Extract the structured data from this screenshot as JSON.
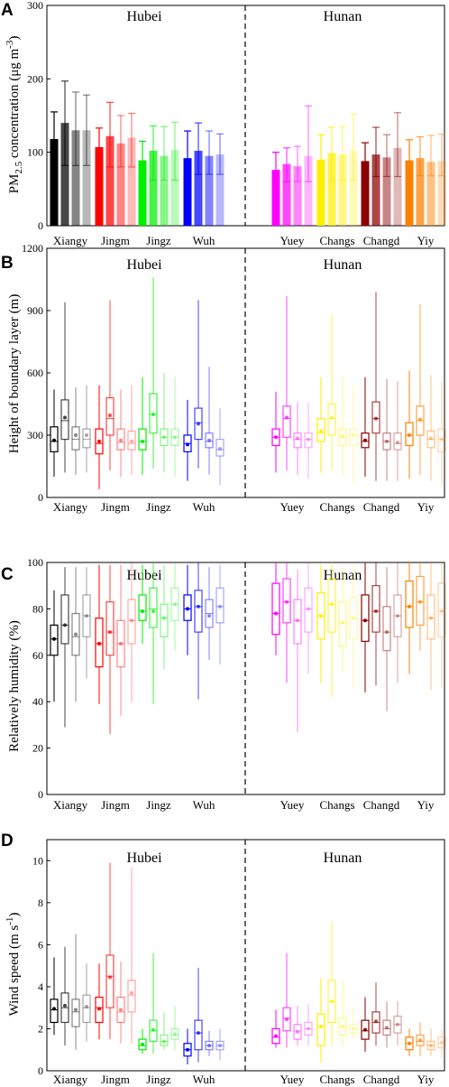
{
  "colors": {
    "Xiangy": "#000000",
    "Jingm": "#ff0000",
    "Jingz": "#00ee00",
    "Wuh": "#0000ff",
    "Yuey": "#ff00ff",
    "Changs": "#ffee00",
    "Changd": "#8b0000",
    "Yiy": "#ff8000"
  },
  "region_left": "Hubei",
  "region_right": "Hunan",
  "chart_data": [
    {
      "type": "bar",
      "letter": "A",
      "ylabel": "PM2.5 concentration (μg m-3)",
      "ylim": [
        0,
        300
      ],
      "yticks": [
        "0",
        "100",
        "200",
        "300"
      ],
      "categories": [
        "Xiangy",
        "Jingm",
        "Jingz",
        "Wuh",
        "Yuey",
        "Changs",
        "Changd",
        "Yiy"
      ],
      "values": {
        "Xiangy": [
          118,
          140,
          130,
          130
        ],
        "Jingm": [
          107,
          122,
          112,
          120
        ],
        "Jingz": [
          89,
          102,
          95,
          103
        ],
        "Wuh": [
          92,
          102,
          95,
          97
        ],
        "Yuey": [
          76,
          84,
          81,
          95
        ],
        "Changs": [
          90,
          99,
          97,
          102
        ],
        "Changd": [
          88,
          97,
          93,
          106
        ],
        "Yiy": [
          89,
          92,
          87,
          88
        ]
      },
      "errors": {
        "Xiangy": [
          [
            82,
            155
          ],
          [
            82,
            197
          ],
          [
            82,
            182
          ],
          [
            82,
            178
          ]
        ],
        "Jingm": [
          [
            80,
            133
          ],
          [
            80,
            168
          ],
          [
            80,
            150
          ],
          [
            80,
            153
          ]
        ],
        "Jingz": [
          [
            62,
            115
          ],
          [
            62,
            136
          ],
          [
            62,
            135
          ],
          [
            62,
            141
          ]
        ],
        "Wuh": [
          [
            70,
            129
          ],
          [
            70,
            140
          ],
          [
            70,
            129
          ],
          [
            70,
            125
          ]
        ],
        "Yuey": [
          [
            60,
            100
          ],
          [
            60,
            106
          ],
          [
            60,
            108
          ],
          [
            60,
            163
          ]
        ],
        "Changs": [
          [
            62,
            124
          ],
          [
            62,
            134
          ],
          [
            62,
            135
          ],
          [
            62,
            152
          ]
        ],
        "Changd": [
          [
            67,
            113
          ],
          [
            67,
            134
          ],
          [
            67,
            124
          ],
          [
            67,
            154
          ]
        ],
        "Yiy": [
          [
            68,
            117
          ],
          [
            68,
            121
          ],
          [
            68,
            123
          ],
          [
            68,
            125
          ]
        ]
      }
    },
    {
      "type": "box",
      "letter": "B",
      "ylabel": "Height of boundary layer (m)",
      "ylim": [
        0,
        1200
      ],
      "yticks": [
        "0",
        "300",
        "600",
        "900",
        "1200"
      ],
      "categories": [
        "Xiangy",
        "Jingm",
        "Jingz",
        "Wuh",
        "Yuey",
        "Changs",
        "Changd",
        "Yiy"
      ],
      "boxes": {
        "Xiangy": [
          [
            100,
            220,
            270,
            340,
            520,
            275
          ],
          [
            120,
            280,
            370,
            470,
            940,
            385
          ],
          [
            110,
            230,
            280,
            340,
            530,
            300
          ],
          [
            120,
            240,
            280,
            330,
            540,
            300
          ]
        ],
        "Jingm": [
          [
            40,
            210,
            260,
            330,
            540,
            270
          ],
          [
            130,
            300,
            380,
            480,
            950,
            395
          ],
          [
            100,
            230,
            265,
            330,
            520,
            275
          ],
          [
            110,
            230,
            260,
            320,
            540,
            270
          ]
        ],
        "Jingz": [
          [
            110,
            230,
            270,
            330,
            580,
            270
          ],
          [
            140,
            310,
            400,
            500,
            1060,
            400
          ],
          [
            120,
            250,
            290,
            330,
            600,
            290
          ],
          [
            100,
            250,
            290,
            330,
            580,
            290
          ]
        ],
        "Wuh": [
          [
            80,
            220,
            260,
            300,
            470,
            255
          ],
          [
            140,
            280,
            360,
            430,
            950,
            355
          ],
          [
            110,
            240,
            270,
            310,
            630,
            275
          ],
          [
            60,
            200,
            230,
            280,
            430,
            235
          ]
        ],
        "Yuey": [
          [
            120,
            250,
            290,
            330,
            510,
            290
          ],
          [
            130,
            290,
            380,
            440,
            970,
            385
          ],
          [
            110,
            240,
            280,
            310,
            460,
            285
          ],
          [
            90,
            240,
            280,
            310,
            460,
            280
          ]
        ],
        "Changs": [
          [
            120,
            270,
            310,
            380,
            580,
            320
          ],
          [
            130,
            300,
            380,
            450,
            880,
            385
          ],
          [
            110,
            250,
            290,
            330,
            580,
            295
          ],
          [
            60,
            250,
            300,
            330,
            540,
            300
          ]
        ],
        "Changd": [
          [
            100,
            240,
            270,
            310,
            580,
            275
          ],
          [
            80,
            310,
            380,
            460,
            990,
            380
          ],
          [
            80,
            230,
            270,
            310,
            570,
            270
          ],
          [
            80,
            230,
            260,
            310,
            560,
            265
          ]
        ],
        "Yiy": [
          [
            90,
            250,
            300,
            360,
            610,
            300
          ],
          [
            110,
            300,
            370,
            440,
            930,
            375
          ],
          [
            80,
            240,
            280,
            320,
            590,
            285
          ],
          [
            60,
            220,
            280,
            330,
            560,
            280
          ]
        ]
      }
    },
    {
      "type": "box",
      "letter": "C",
      "ylabel": "Relatively humidity (%)",
      "ylim": [
        0,
        100
      ],
      "yticks": [
        "0",
        "20",
        "40",
        "60",
        "80",
        "100"
      ],
      "categories": [
        "Xiangy",
        "Jingm",
        "Jingz",
        "Wuh",
        "Yuey",
        "Changs",
        "Changd",
        "Yiy"
      ],
      "boxes": {
        "Xiangy": [
          [
            40,
            60,
            67,
            73,
            88,
            67
          ],
          [
            29,
            65,
            73,
            86,
            98,
            73
          ],
          [
            40,
            60,
            68,
            78,
            98,
            69
          ],
          [
            50,
            68,
            77,
            86,
            98,
            77
          ]
        ],
        "Jingm": [
          [
            39,
            55,
            65,
            76,
            99,
            65
          ],
          [
            26,
            60,
            70,
            83,
            99,
            70
          ],
          [
            34,
            55,
            65,
            75,
            99,
            65
          ],
          [
            40,
            65,
            75,
            84,
            100,
            75
          ]
        ],
        "Jingz": [
          [
            65,
            75,
            79,
            86,
            99,
            79
          ],
          [
            39,
            72,
            80,
            89,
            100,
            79
          ],
          [
            54,
            68,
            76,
            82,
            99,
            76
          ],
          [
            62,
            75,
            82,
            89,
            100,
            82
          ]
        ],
        "Wuh": [
          [
            60,
            75,
            80,
            86,
            99,
            80
          ],
          [
            41,
            70,
            81,
            88,
            100,
            81
          ],
          [
            58,
            72,
            78,
            84,
            98,
            77
          ],
          [
            56,
            74,
            81,
            89,
            99,
            81
          ]
        ],
        "Yuey": [
          [
            60,
            69,
            78,
            91,
            100,
            78
          ],
          [
            48,
            74,
            83,
            93,
            100,
            83
          ],
          [
            27,
            65,
            75,
            84,
            97,
            75
          ],
          [
            52,
            70,
            80,
            89,
            100,
            80
          ]
        ],
        "Changs": [
          [
            48,
            67,
            77,
            87,
            99,
            77
          ],
          [
            42,
            70,
            82,
            93,
            100,
            82
          ],
          [
            53,
            64,
            74,
            83,
            98,
            74
          ],
          [
            46,
            67,
            76,
            85,
            99,
            76
          ]
        ],
        "Changd": [
          [
            44,
            66,
            75,
            86,
            100,
            75
          ],
          [
            47,
            70,
            79,
            90,
            100,
            79
          ],
          [
            36,
            62,
            70,
            81,
            98,
            70
          ],
          [
            48,
            68,
            77,
            86,
            100,
            77
          ]
        ],
        "Yiy": [
          [
            52,
            72,
            81,
            92,
            100,
            81
          ],
          [
            62,
            73,
            83,
            94,
            100,
            83
          ],
          [
            45,
            67,
            76,
            86,
            100,
            76
          ],
          [
            46,
            68,
            79,
            91,
            100,
            79
          ]
        ]
      }
    },
    {
      "type": "box",
      "letter": "D",
      "ylabel": "Wind speed (m s-1)",
      "ylim": [
        0,
        11
      ],
      "yticks": [
        "0",
        "2",
        "4",
        "6",
        "8",
        "10"
      ],
      "categories": [
        "Xiangy",
        "Jingm",
        "Jingz",
        "Wuh",
        "Yuey",
        "Changs",
        "Changd",
        "Yiy"
      ],
      "boxes": {
        "Xiangy": [
          [
            1.7,
            2.3,
            2.9,
            3.4,
            5.4,
            2.95
          ],
          [
            1.2,
            2.3,
            3.0,
            3.7,
            5.9,
            3.1
          ],
          [
            1.0,
            2.1,
            2.8,
            3.4,
            6.5,
            2.9
          ],
          [
            1.4,
            2.3,
            3.0,
            3.6,
            5.1,
            3.05
          ]
        ],
        "Jingm": [
          [
            1.5,
            2.3,
            3.0,
            3.5,
            5.1,
            2.95
          ],
          [
            1.5,
            3.0,
            4.5,
            5.5,
            9.9,
            4.45
          ],
          [
            1.3,
            2.3,
            2.8,
            3.5,
            5.2,
            2.9
          ],
          [
            1.3,
            2.8,
            3.6,
            4.3,
            9.7,
            3.7
          ]
        ],
        "Jingz": [
          [
            0.8,
            1.0,
            1.2,
            1.5,
            2.0,
            1.25
          ],
          [
            0.8,
            1.4,
            1.9,
            2.4,
            5.6,
            1.95
          ],
          [
            1.0,
            1.2,
            1.4,
            1.7,
            2.8,
            1.4
          ],
          [
            1.0,
            1.5,
            1.7,
            2.0,
            3.1,
            1.75
          ]
        ],
        "Wuh": [
          [
            0.3,
            0.7,
            1.0,
            1.3,
            2.0,
            1.0
          ],
          [
            0.4,
            1.0,
            1.8,
            2.4,
            4.9,
            1.8
          ],
          [
            0.7,
            1.0,
            1.2,
            1.4,
            1.9,
            1.2
          ],
          [
            0.5,
            1.0,
            1.2,
            1.4,
            2.0,
            1.2
          ]
        ],
        "Yuey": [
          [
            1.1,
            1.3,
            1.6,
            2.0,
            2.9,
            1.65
          ],
          [
            1.1,
            1.9,
            2.5,
            3.0,
            5.6,
            2.45
          ],
          [
            1.2,
            1.5,
            1.9,
            2.2,
            3.1,
            1.85
          ],
          [
            1.2,
            1.7,
            2.0,
            2.3,
            3.2,
            2.0
          ]
        ],
        "Changs": [
          [
            0.4,
            1.2,
            2.1,
            2.7,
            4.4,
            2.1
          ],
          [
            1.2,
            2.3,
            3.3,
            4.3,
            7.1,
            3.3
          ],
          [
            1.2,
            1.7,
            2.1,
            2.5,
            4.3,
            2.1
          ],
          [
            1.5,
            1.8,
            2.0,
            2.2,
            3.0,
            2.0
          ]
        ],
        "Changd": [
          [
            0.9,
            1.5,
            1.9,
            2.4,
            3.5,
            1.95
          ],
          [
            1.2,
            1.8,
            2.3,
            2.8,
            4.2,
            2.35
          ],
          [
            1.1,
            1.7,
            2.0,
            2.4,
            3.3,
            2.05
          ],
          [
            1.2,
            1.8,
            2.2,
            2.6,
            3.3,
            2.2
          ]
        ],
        "Yiy": [
          [
            0.7,
            1.0,
            1.3,
            1.6,
            2.0,
            1.3
          ],
          [
            0.7,
            1.2,
            1.4,
            1.7,
            2.3,
            1.45
          ],
          [
            0.7,
            1.0,
            1.2,
            1.4,
            2.0,
            1.2
          ],
          [
            0.6,
            1.1,
            1.3,
            1.6,
            2.0,
            1.35
          ]
        ]
      }
    }
  ]
}
